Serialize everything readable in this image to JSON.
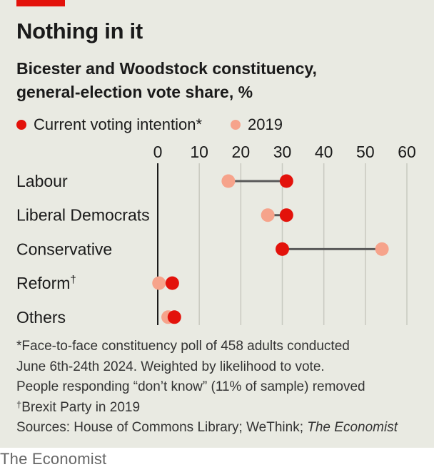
{
  "title": "Nothing in it",
  "subtitle_line1": "Bicester and Woodstock constituency,",
  "subtitle_line2": "general-election vote share, %",
  "legend": {
    "current_label": "Current voting intention*",
    "prior_label": "2019"
  },
  "colors": {
    "current": "#e3120b",
    "prior": "#f6a38b",
    "connector": "#595959",
    "background": "#e9eae2",
    "grid": "#c8c9c0"
  },
  "chart_data": {
    "type": "dumbbell",
    "xlim": [
      0,
      60
    ],
    "xticks": [
      0,
      10,
      20,
      30,
      40,
      50,
      60
    ],
    "grid": true,
    "series": [
      {
        "name": "Current voting intention*",
        "key": "current"
      },
      {
        "name": "2019",
        "key": "prior"
      }
    ],
    "rows": [
      {
        "label": "Labour",
        "sup": "",
        "current": 31,
        "prior": 17
      },
      {
        "label": "Liberal Democrats",
        "sup": "",
        "current": 31,
        "prior": 26.5
      },
      {
        "label": "Conservative",
        "sup": "",
        "current": 30,
        "prior": 54
      },
      {
        "label": "Reform",
        "sup": "†",
        "current": 3.5,
        "prior": 0.3
      },
      {
        "label": "Others",
        "sup": "",
        "current": 4,
        "prior": 2.5
      }
    ]
  },
  "notes": {
    "line1": "*Face-to-face constituency poll of 458 adults conducted",
    "line2": "June 6th-24th 2024. Weighted by likelihood to vote.",
    "line3": "People responding “don’t know” (11% of sample) removed",
    "dagger": "†",
    "line4": "Brexit Party in 2019",
    "sources_prefix": "Sources: House of Commons Library; WeThink; ",
    "sources_italic": "The Economist"
  },
  "footer": "The Economist"
}
